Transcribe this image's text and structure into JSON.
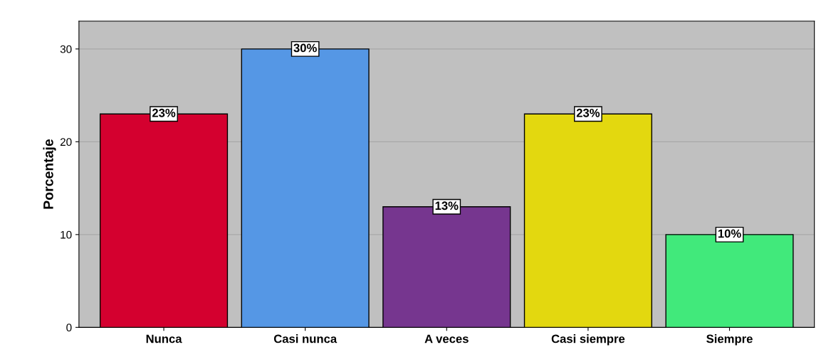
{
  "chart_data": {
    "type": "bar",
    "ylabel": "Porcentaje",
    "categories": [
      "Nunca",
      "Casi nunca",
      "A veces",
      "Casi siempre",
      "Siempre"
    ],
    "values": [
      23,
      30,
      13,
      23,
      10
    ],
    "colors": [
      "#d4002f",
      "#5597e5",
      "#76368f",
      "#e3d80f",
      "#41e97b"
    ],
    "value_labels": [
      "23%",
      "30%",
      "13%",
      "23%",
      "10%"
    ],
    "ylim": [
      0,
      33
    ],
    "yticks": [
      0,
      10,
      20,
      30
    ],
    "grid": "y",
    "legend": false
  }
}
